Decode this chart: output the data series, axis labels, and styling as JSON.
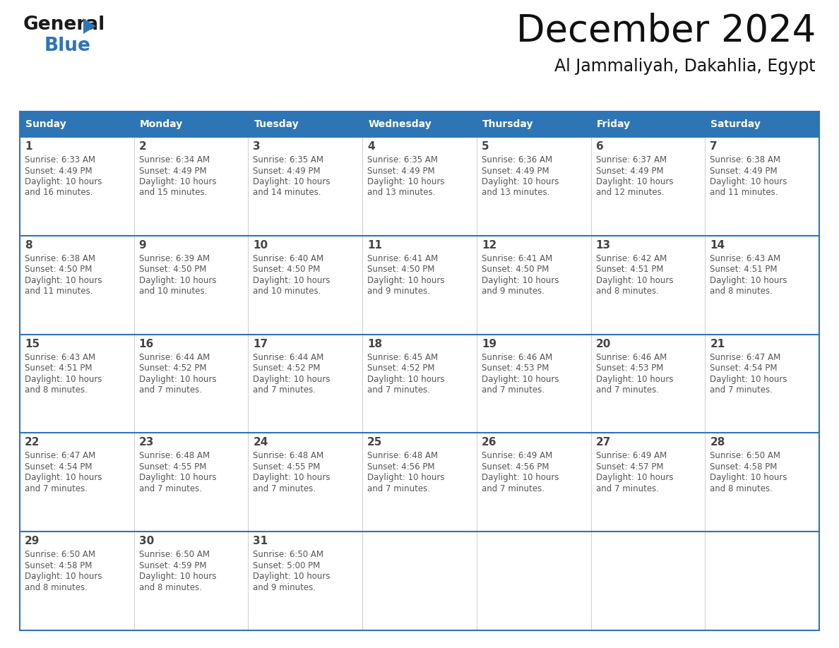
{
  "title": "December 2024",
  "subtitle": "Al Jammaliyah, Dakahlia, Egypt",
  "header_color": "#2E75B6",
  "header_text_color": "#FFFFFF",
  "border_color": "#2E75B6",
  "day_number_color": "#444444",
  "cell_text_color": "#555555",
  "days_of_week": [
    "Sunday",
    "Monday",
    "Tuesday",
    "Wednesday",
    "Thursday",
    "Friday",
    "Saturday"
  ],
  "calendar_data": [
    [
      {
        "day": "1",
        "sunrise": "6:33 AM",
        "sunset": "4:49 PM",
        "daylight_line1": "Daylight: 10 hours",
        "daylight_line2": "and 16 minutes."
      },
      {
        "day": "2",
        "sunrise": "6:34 AM",
        "sunset": "4:49 PM",
        "daylight_line1": "Daylight: 10 hours",
        "daylight_line2": "and 15 minutes."
      },
      {
        "day": "3",
        "sunrise": "6:35 AM",
        "sunset": "4:49 PM",
        "daylight_line1": "Daylight: 10 hours",
        "daylight_line2": "and 14 minutes."
      },
      {
        "day": "4",
        "sunrise": "6:35 AM",
        "sunset": "4:49 PM",
        "daylight_line1": "Daylight: 10 hours",
        "daylight_line2": "and 13 minutes."
      },
      {
        "day": "5",
        "sunrise": "6:36 AM",
        "sunset": "4:49 PM",
        "daylight_line1": "Daylight: 10 hours",
        "daylight_line2": "and 13 minutes."
      },
      {
        "day": "6",
        "sunrise": "6:37 AM",
        "sunset": "4:49 PM",
        "daylight_line1": "Daylight: 10 hours",
        "daylight_line2": "and 12 minutes."
      },
      {
        "day": "7",
        "sunrise": "6:38 AM",
        "sunset": "4:49 PM",
        "daylight_line1": "Daylight: 10 hours",
        "daylight_line2": "and 11 minutes."
      }
    ],
    [
      {
        "day": "8",
        "sunrise": "6:38 AM",
        "sunset": "4:50 PM",
        "daylight_line1": "Daylight: 10 hours",
        "daylight_line2": "and 11 minutes."
      },
      {
        "day": "9",
        "sunrise": "6:39 AM",
        "sunset": "4:50 PM",
        "daylight_line1": "Daylight: 10 hours",
        "daylight_line2": "and 10 minutes."
      },
      {
        "day": "10",
        "sunrise": "6:40 AM",
        "sunset": "4:50 PM",
        "daylight_line1": "Daylight: 10 hours",
        "daylight_line2": "and 10 minutes."
      },
      {
        "day": "11",
        "sunrise": "6:41 AM",
        "sunset": "4:50 PM",
        "daylight_line1": "Daylight: 10 hours",
        "daylight_line2": "and 9 minutes."
      },
      {
        "day": "12",
        "sunrise": "6:41 AM",
        "sunset": "4:50 PM",
        "daylight_line1": "Daylight: 10 hours",
        "daylight_line2": "and 9 minutes."
      },
      {
        "day": "13",
        "sunrise": "6:42 AM",
        "sunset": "4:51 PM",
        "daylight_line1": "Daylight: 10 hours",
        "daylight_line2": "and 8 minutes."
      },
      {
        "day": "14",
        "sunrise": "6:43 AM",
        "sunset": "4:51 PM",
        "daylight_line1": "Daylight: 10 hours",
        "daylight_line2": "and 8 minutes."
      }
    ],
    [
      {
        "day": "15",
        "sunrise": "6:43 AM",
        "sunset": "4:51 PM",
        "daylight_line1": "Daylight: 10 hours",
        "daylight_line2": "and 8 minutes."
      },
      {
        "day": "16",
        "sunrise": "6:44 AM",
        "sunset": "4:52 PM",
        "daylight_line1": "Daylight: 10 hours",
        "daylight_line2": "and 7 minutes."
      },
      {
        "day": "17",
        "sunrise": "6:44 AM",
        "sunset": "4:52 PM",
        "daylight_line1": "Daylight: 10 hours",
        "daylight_line2": "and 7 minutes."
      },
      {
        "day": "18",
        "sunrise": "6:45 AM",
        "sunset": "4:52 PM",
        "daylight_line1": "Daylight: 10 hours",
        "daylight_line2": "and 7 minutes."
      },
      {
        "day": "19",
        "sunrise": "6:46 AM",
        "sunset": "4:53 PM",
        "daylight_line1": "Daylight: 10 hours",
        "daylight_line2": "and 7 minutes."
      },
      {
        "day": "20",
        "sunrise": "6:46 AM",
        "sunset": "4:53 PM",
        "daylight_line1": "Daylight: 10 hours",
        "daylight_line2": "and 7 minutes."
      },
      {
        "day": "21",
        "sunrise": "6:47 AM",
        "sunset": "4:54 PM",
        "daylight_line1": "Daylight: 10 hours",
        "daylight_line2": "and 7 minutes."
      }
    ],
    [
      {
        "day": "22",
        "sunrise": "6:47 AM",
        "sunset": "4:54 PM",
        "daylight_line1": "Daylight: 10 hours",
        "daylight_line2": "and 7 minutes."
      },
      {
        "day": "23",
        "sunrise": "6:48 AM",
        "sunset": "4:55 PM",
        "daylight_line1": "Daylight: 10 hours",
        "daylight_line2": "and 7 minutes."
      },
      {
        "day": "24",
        "sunrise": "6:48 AM",
        "sunset": "4:55 PM",
        "daylight_line1": "Daylight: 10 hours",
        "daylight_line2": "and 7 minutes."
      },
      {
        "day": "25",
        "sunrise": "6:48 AM",
        "sunset": "4:56 PM",
        "daylight_line1": "Daylight: 10 hours",
        "daylight_line2": "and 7 minutes."
      },
      {
        "day": "26",
        "sunrise": "6:49 AM",
        "sunset": "4:56 PM",
        "daylight_line1": "Daylight: 10 hours",
        "daylight_line2": "and 7 minutes."
      },
      {
        "day": "27",
        "sunrise": "6:49 AM",
        "sunset": "4:57 PM",
        "daylight_line1": "Daylight: 10 hours",
        "daylight_line2": "and 7 minutes."
      },
      {
        "day": "28",
        "sunrise": "6:50 AM",
        "sunset": "4:58 PM",
        "daylight_line1": "Daylight: 10 hours",
        "daylight_line2": "and 8 minutes."
      }
    ],
    [
      {
        "day": "29",
        "sunrise": "6:50 AM",
        "sunset": "4:58 PM",
        "daylight_line1": "Daylight: 10 hours",
        "daylight_line2": "and 8 minutes."
      },
      {
        "day": "30",
        "sunrise": "6:50 AM",
        "sunset": "4:59 PM",
        "daylight_line1": "Daylight: 10 hours",
        "daylight_line2": "and 8 minutes."
      },
      {
        "day": "31",
        "sunrise": "6:50 AM",
        "sunset": "5:00 PM",
        "daylight_line1": "Daylight: 10 hours",
        "daylight_line2": "and 9 minutes."
      },
      null,
      null,
      null,
      null
    ]
  ]
}
